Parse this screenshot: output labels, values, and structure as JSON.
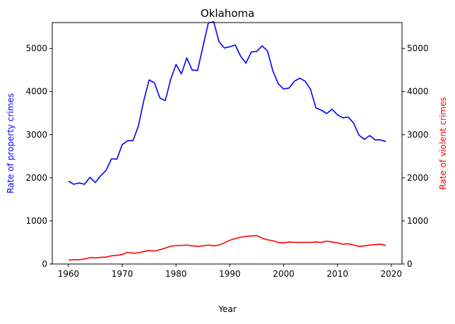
{
  "chart_data": {
    "type": "line",
    "title": "Oklahoma",
    "xlabel": "Year",
    "ylabel_left": "Rate of property crimes",
    "ylabel_right": "Rate of violent crimes",
    "xlim": [
      1957,
      2022
    ],
    "ylim": [
      0,
      5600
    ],
    "x_ticks": [
      1960,
      1970,
      1980,
      1990,
      2000,
      2010,
      2020
    ],
    "y_ticks": [
      0,
      1000,
      2000,
      3000,
      4000,
      5000
    ],
    "grid": false,
    "colors": {
      "property": "#0000ff",
      "violent": "#ff0000",
      "axis": "#000000"
    },
    "x": [
      1960,
      1961,
      1962,
      1963,
      1964,
      1965,
      1966,
      1967,
      1968,
      1969,
      1970,
      1971,
      1972,
      1973,
      1974,
      1975,
      1976,
      1977,
      1978,
      1979,
      1980,
      1981,
      1982,
      1983,
      1984,
      1985,
      1986,
      1987,
      1988,
      1989,
      1990,
      1991,
      1992,
      1993,
      1994,
      1995,
      1996,
      1997,
      1998,
      1999,
      2000,
      2001,
      2002,
      2003,
      2004,
      2005,
      2006,
      2007,
      2008,
      2009,
      2010,
      2011,
      2012,
      2013,
      2014,
      2015,
      2016,
      2017,
      2018,
      2019
    ],
    "series": [
      {
        "name": "Rate of property crimes",
        "axis": "left",
        "color": "#0000ff",
        "values": [
          1920,
          1850,
          1880,
          1850,
          2010,
          1890,
          2050,
          2170,
          2440,
          2430,
          2770,
          2860,
          2860,
          3200,
          3790,
          4270,
          4200,
          3850,
          3790,
          4280,
          4630,
          4410,
          4780,
          4500,
          4490,
          5040,
          5590,
          5620,
          5150,
          5010,
          5040,
          5080,
          4820,
          4660,
          4920,
          4930,
          5060,
          4940,
          4480,
          4180,
          4060,
          4080,
          4240,
          4310,
          4240,
          4050,
          3620,
          3570,
          3490,
          3590,
          3460,
          3390,
          3410,
          3270,
          2990,
          2890,
          2980,
          2880,
          2880,
          2840
        ]
      },
      {
        "name": "Rate of violent crimes",
        "axis": "right",
        "color": "#ff0000",
        "values": [
          90,
          100,
          100,
          115,
          150,
          140,
          155,
          160,
          190,
          200,
          220,
          270,
          250,
          260,
          290,
          310,
          300,
          330,
          370,
          410,
          430,
          430,
          440,
          420,
          410,
          420,
          440,
          420,
          440,
          490,
          550,
          590,
          620,
          640,
          650,
          660,
          600,
          560,
          540,
          500,
          490,
          510,
          500,
          500,
          500,
          500,
          510,
          500,
          530,
          510,
          490,
          460,
          470,
          440,
          410,
          420,
          440,
          450,
          460,
          430
        ]
      }
    ]
  }
}
